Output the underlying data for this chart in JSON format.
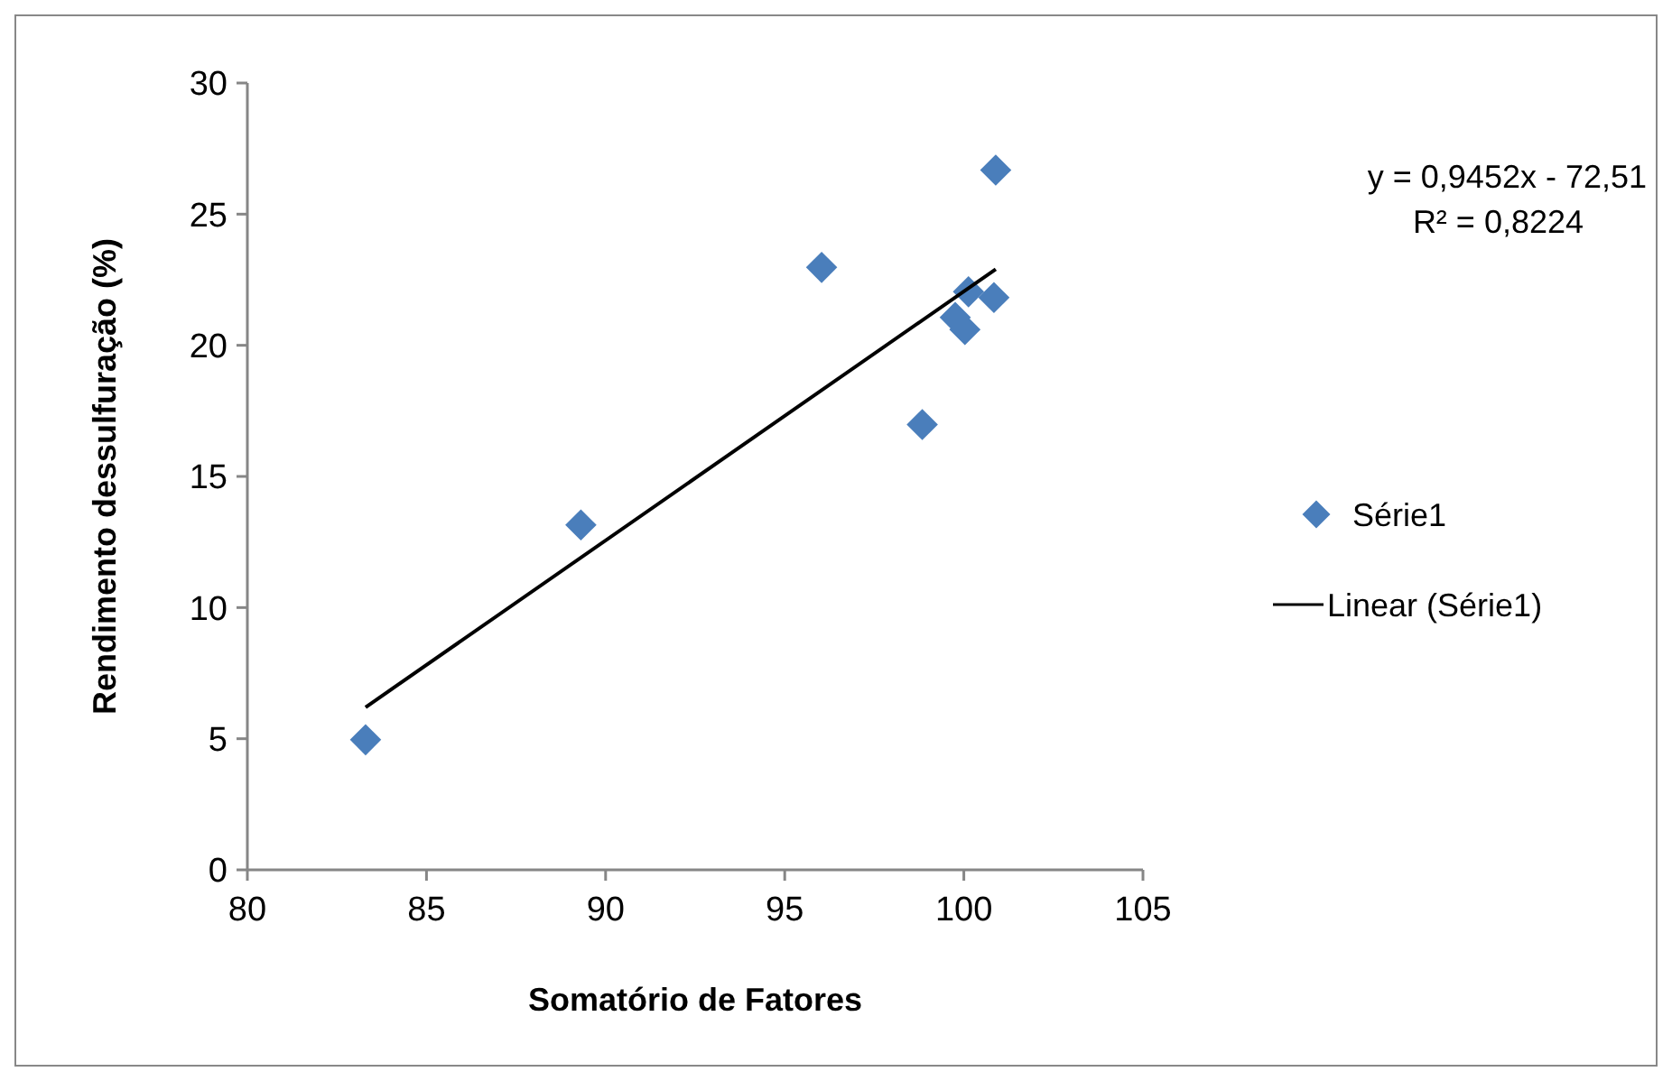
{
  "chart_data": {
    "type": "scatter",
    "xlabel": "Somatório de Fatores",
    "ylabel": "Rendimento dessulfuração (%)",
    "xlim": [
      80,
      105
    ],
    "xticks": [
      80,
      85,
      90,
      95,
      100,
      105
    ],
    "ylim": [
      0,
      30
    ],
    "yticks": [
      0,
      5,
      10,
      15,
      20,
      25,
      30
    ],
    "legend": "right",
    "grid": false,
    "marker": "diamond",
    "annotations": [
      "y = 0,9452x - 72,51",
      "R² = 0,8224"
    ],
    "series": [
      {
        "name": "Série1",
        "color": "#4a7ebb",
        "x": [
          83.3,
          89.31,
          96.03,
          98.84,
          99.76,
          100.03,
          100.13,
          100.84,
          100.89
        ],
        "values": [
          4.96,
          13.15,
          22.97,
          16.98,
          21.06,
          20.6,
          22.04,
          21.82,
          26.68
        ]
      },
      {
        "name": "Linear (Série1)",
        "type": "line",
        "color": "#000000",
        "line_style": "solid",
        "marker": "none",
        "x": [
          83.3,
          100.89
        ],
        "values": [
          6.2,
          22.9
        ]
      }
    ]
  }
}
